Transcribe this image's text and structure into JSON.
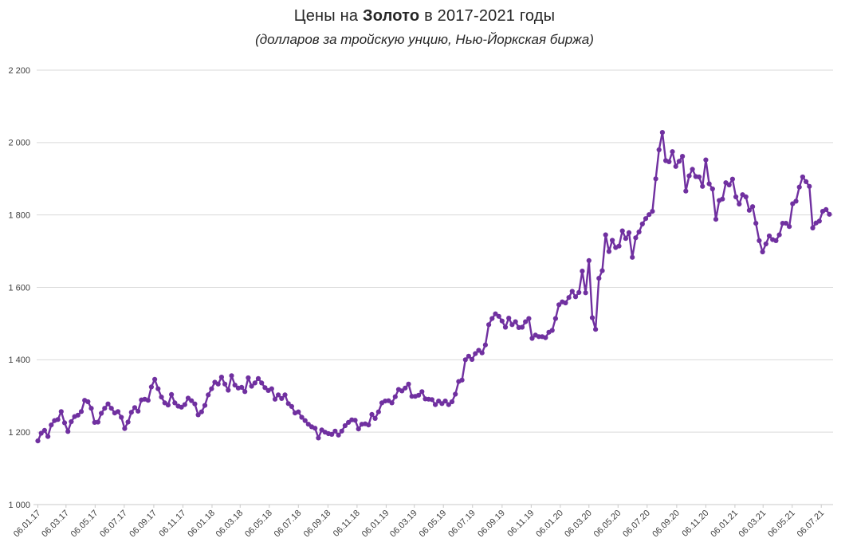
{
  "page": {
    "background": "#ffffff"
  },
  "chart_data": {
    "type": "line",
    "title": {
      "prefix": "Цены на ",
      "bold": "Золото",
      "suffix": " в 2017-2021 годы"
    },
    "subtitle": "(долларов за тройскую унцию, Нью-Йоркская биржа)",
    "series_name": "gold-price-usd-per-troy-ounce",
    "line_color": "#7030A0",
    "marker_color": "#7030A0",
    "gridline_color": "#D9D9D9",
    "axis_color": "#C9C9C9",
    "tick_label_color": "#404040",
    "grid": true,
    "legend": "none",
    "marker": "circle",
    "ylim": [
      1000,
      2200
    ],
    "y_ticks": [
      {
        "label": "2 200",
        "value": 2200
      },
      {
        "label": "2 000",
        "value": 2000
      },
      {
        "label": "1 800",
        "value": 1800
      },
      {
        "label": "1 600",
        "value": 1600
      },
      {
        "label": "1 400",
        "value": 1400
      },
      {
        "label": "1 200",
        "value": 1200
      },
      {
        "label": "1 000",
        "value": 1000
      }
    ],
    "x_tick_labels": [
      "06.01.17",
      "06.03.17",
      "06.05.17",
      "06.07.17",
      "06.09.17",
      "06.11.17",
      "06.01.18",
      "06.03.18",
      "06.05.18",
      "06.07.18",
      "06.09.18",
      "06.11.18",
      "06.01.19",
      "06.03.19",
      "06.05.19",
      "06.07.19",
      "06.09.19",
      "06.11.19",
      "06.01.20",
      "06.03.20",
      "06.05.20",
      "06.07.20",
      "06.09.20",
      "06.11.20",
      "06.01.21",
      "06.03.21",
      "06.05.21",
      "06.07.21"
    ],
    "point_interval_days": 7,
    "values": [
      1176,
      1197,
      1205,
      1188,
      1220,
      1232,
      1235,
      1257,
      1226,
      1202,
      1229,
      1243,
      1247,
      1257,
      1288,
      1284,
      1266,
      1227,
      1228,
      1252,
      1266,
      1278,
      1266,
      1253,
      1257,
      1241,
      1210,
      1228,
      1255,
      1268,
      1258,
      1289,
      1291,
      1288,
      1325,
      1346,
      1320,
      1297,
      1281,
      1275,
      1304,
      1281,
      1272,
      1269,
      1276,
      1294,
      1287,
      1278,
      1248,
      1256,
      1274,
      1303,
      1320,
      1338,
      1333,
      1352,
      1333,
      1316,
      1356,
      1330,
      1322,
      1324,
      1312,
      1350,
      1327,
      1336,
      1348,
      1336,
      1323,
      1315,
      1320,
      1291,
      1303,
      1293,
      1303,
      1279,
      1271,
      1253,
      1256,
      1241,
      1232,
      1222,
      1215,
      1211,
      1184,
      1206,
      1200,
      1196,
      1194,
      1203,
      1192,
      1203,
      1218,
      1227,
      1234,
      1233,
      1209,
      1222,
      1223,
      1220,
      1249,
      1238,
      1256,
      1281,
      1286,
      1287,
      1281,
      1298,
      1318,
      1314,
      1322,
      1333,
      1299,
      1299,
      1302,
      1312,
      1292,
      1291,
      1290,
      1276,
      1286,
      1279,
      1286,
      1276,
      1284,
      1305,
      1340,
      1344,
      1400,
      1410,
      1401,
      1417,
      1426,
      1419,
      1441,
      1497,
      1514,
      1527,
      1520,
      1507,
      1490,
      1515,
      1497,
      1505,
      1489,
      1490,
      1505,
      1514,
      1459,
      1468,
      1464,
      1464,
      1461,
      1476,
      1481,
      1514,
      1552,
      1560,
      1557,
      1572,
      1589,
      1574,
      1586,
      1645,
      1585,
      1674,
      1516,
      1484,
      1625,
      1646,
      1745,
      1699,
      1730,
      1710,
      1714,
      1756,
      1735,
      1751,
      1683,
      1737,
      1753,
      1775,
      1790,
      1801,
      1810,
      1900,
      1980,
      2028,
      1950,
      1947,
      1975,
      1934,
      1948,
      1962,
      1866,
      1908,
      1926,
      1906,
      1905,
      1879,
      1952,
      1886,
      1872,
      1788,
      1840,
      1844,
      1889,
      1883,
      1899,
      1850,
      1830,
      1856,
      1850,
      1813,
      1823,
      1777,
      1729,
      1698,
      1720,
      1742,
      1732,
      1729,
      1745,
      1777,
      1777,
      1768,
      1831,
      1838,
      1877,
      1905,
      1892,
      1879,
      1764,
      1778,
      1783,
      1810,
      1815,
      1802
    ]
  }
}
